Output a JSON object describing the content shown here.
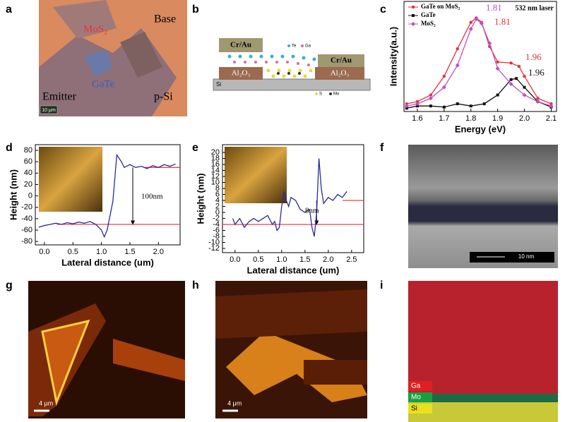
{
  "panel_labels": [
    "a",
    "b",
    "c",
    "d",
    "e",
    "f",
    "g",
    "h",
    "i"
  ],
  "panel_a": {
    "labels": [
      "Base",
      "MoS₂",
      "GaTe",
      "Emitter",
      "p-Si"
    ],
    "scale_bar": "10 μm"
  },
  "panel_b": {
    "blocks": [
      "Cr/Au",
      "Cr/Au",
      "Al₂O₃",
      "Al₂O₃",
      "Si"
    ],
    "legend": [
      "Te",
      "Ga",
      "S",
      "Mo"
    ]
  },
  "panel_f": {
    "scale_bar": "10 nm"
  },
  "panel_g": {
    "scale_bar": "4 μm"
  },
  "panel_h": {
    "scale_bar": "4 μm"
  },
  "panel_i": {
    "legend": [
      "Ga",
      "Mo",
      "Si"
    ]
  },
  "chart_data": [
    {
      "type": "line",
      "x_label": "Energy (eV)",
      "y_label": "Intensity(a.u.)",
      "xlim": [
        1.55,
        2.12
      ],
      "ylim": [
        0,
        1
      ],
      "xticks": [
        1.6,
        1.7,
        1.8,
        1.9,
        {
          "value": 2,
          "label": "2.0"
        },
        2.1
      ],
      "legend": "upper left",
      "note": "532 nm laser",
      "series": [
        {
          "name": "GaTe on MoS₂",
          "color": "#e8313a",
          "marker": "circle",
          "x": [
            1.56,
            1.6,
            1.65,
            1.7,
            1.75,
            1.8,
            1.82,
            1.84,
            1.87,
            1.9,
            1.95,
            1.98,
            2.0,
            2.05,
            2.1
          ],
          "values": [
            0.07,
            0.09,
            0.15,
            0.32,
            0.57,
            0.81,
            0.85,
            0.81,
            0.59,
            0.45,
            0.44,
            0.41,
            0.32,
            0.12,
            0.07
          ]
        },
        {
          "name": "GaTe",
          "color": "#111111",
          "marker": "square",
          "x": [
            1.56,
            1.6,
            1.65,
            1.7,
            1.75,
            1.8,
            1.85,
            1.9,
            1.95,
            1.97,
            2.0,
            2.05,
            2.1
          ],
          "values": [
            0.03,
            0.05,
            0.05,
            0.04,
            0.07,
            0.05,
            0.07,
            0.15,
            0.29,
            0.3,
            0.22,
            0.09,
            0.04
          ]
        },
        {
          "name": "MoS₂",
          "color": "#c04ec8",
          "marker": "diamond",
          "x": [
            1.56,
            1.6,
            1.65,
            1.7,
            1.75,
            1.8,
            1.82,
            1.84,
            1.87,
            1.9,
            1.95,
            2.0,
            2.05,
            2.1
          ],
          "values": [
            0.05,
            0.07,
            0.12,
            0.22,
            0.42,
            0.75,
            0.84,
            0.8,
            0.62,
            0.39,
            0.25,
            0.15,
            0.09,
            0.05
          ]
        }
      ],
      "annotations": [
        {
          "text": "1.81",
          "color": "#c04ec8"
        },
        {
          "text": "1.81",
          "color": "#e8313a"
        },
        {
          "text": "1.96",
          "color": "#e8313a"
        },
        {
          "text": "1.96",
          "color": "#111111"
        }
      ]
    },
    {
      "type": "line",
      "x_label": "Lateral distance (um)",
      "y_label": "Height (nm)",
      "xlim": [
        -0.16,
        2.38
      ],
      "ylim": [
        -86,
        90
      ],
      "xticks": [
        {
          "value": 0,
          "label": "0.0"
        },
        0.5,
        {
          "value": 1,
          "label": "1.0"
        },
        1.5,
        {
          "value": 2,
          "label": "2.0"
        }
      ],
      "yticks": [
        -80,
        -60,
        -40,
        -20,
        0,
        20,
        40,
        60,
        80
      ],
      "series": [
        {
          "color": "#2b2b9a",
          "x": [
            -0.1,
            0,
            0.1,
            0.2,
            0.3,
            0.4,
            0.5,
            0.6,
            0.7,
            0.8,
            0.9,
            1.0,
            1.05,
            1.1,
            1.2,
            1.27,
            1.35,
            1.4,
            1.5,
            1.6,
            1.7,
            1.8,
            1.9,
            2.0,
            2.1,
            2.2,
            2.3
          ],
          "values": [
            -55,
            -52,
            -50,
            -48,
            -50,
            -47,
            -49,
            -46,
            -48,
            -45,
            -50,
            -60,
            -72,
            -60,
            -10,
            72,
            60,
            50,
            55,
            50,
            52,
            48,
            53,
            50,
            55,
            52,
            56
          ]
        }
      ],
      "reference_lines": {
        "color": "#e0303a",
        "values": [
          -50,
          50
        ]
      },
      "annotation": "100nm"
    },
    {
      "type": "line",
      "x_label": "Lateral distance (um)",
      "y_label": "Height (nm)",
      "xlim": [
        -0.27,
        2.76
      ],
      "ylim": [
        -13.4,
        22.6
      ],
      "xticks": [
        {
          "value": 0,
          "label": "0.0"
        },
        0.5,
        {
          "value": 1,
          "label": "1.0"
        },
        1.5,
        {
          "value": 2,
          "label": "2.0"
        },
        2.5
      ],
      "yticks": [
        -12,
        -10,
        -8,
        -6,
        -4,
        -2,
        0,
        2,
        4,
        6,
        8,
        10,
        12,
        14,
        16,
        18,
        20
      ],
      "series": [
        {
          "color": "#2b2b9a",
          "x": [
            -0.05,
            0,
            0.1,
            0.2,
            0.3,
            0.4,
            0.5,
            0.6,
            0.7,
            0.8,
            0.85,
            0.9,
            0.95,
            1.0,
            1.05,
            1.1,
            1.15,
            1.2,
            1.3,
            1.4,
            1.5,
            1.6,
            1.65,
            1.7,
            1.75,
            1.8,
            1.85,
            1.9,
            2.0,
            2.1,
            2.2,
            2.3,
            2.4
          ],
          "values": [
            -2,
            -4,
            -2,
            -5,
            -3,
            -2,
            -3,
            -2,
            -1,
            -4,
            -3,
            -6,
            -5,
            2,
            7,
            4,
            2,
            5,
            4,
            1,
            0,
            1,
            -5,
            -8,
            0,
            18,
            8,
            3,
            5,
            4,
            6,
            5,
            7
          ]
        }
      ],
      "reference_lines": {
        "color": "#e0303a",
        "values": [
          -4,
          4
        ]
      },
      "annotation": "8nm"
    }
  ]
}
